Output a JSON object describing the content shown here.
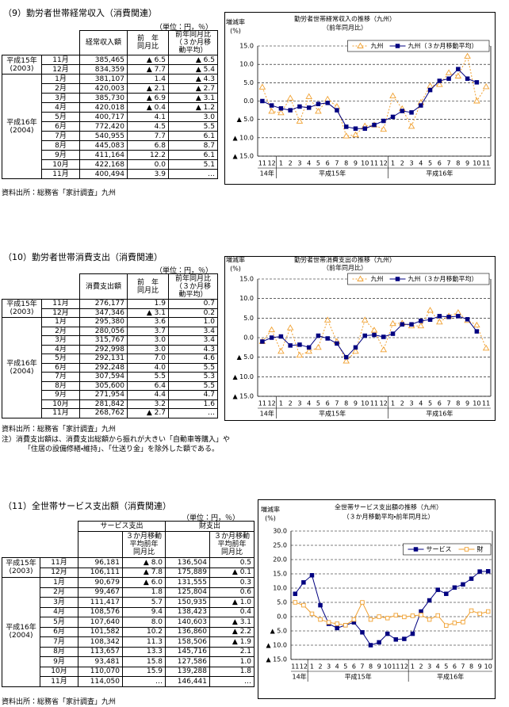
{
  "sections": [
    {
      "title": "（9）勤労者世帯経常収入（消費関連）",
      "unit": "（単位：円，％）",
      "table": {
        "header": [
          "経常収入額",
          [
            "前　年",
            "同月比"
          ],
          [
            "前年同月比",
            "（３か月移",
            "動平均）"
          ]
        ],
        "groups": [
          {
            "year": [
              "平成15年",
              "(2003)"
            ],
            "rows": [
              [
                "11月",
                "385,465",
                "▲ 6.5",
                "▲ 6.5"
              ],
              [
                "12月",
                "834,359",
                "▲ 7.7",
                "▲ 5.4"
              ]
            ]
          },
          {
            "year": [
              "平成16年",
              "(2004)"
            ],
            "rows": [
              [
                "1月",
                "381,107",
                "1.4",
                "▲ 4.3"
              ],
              [
                "2月",
                "420,003",
                "▲ 2.1",
                "▲ 2.7"
              ],
              [
                "3月",
                "385,730",
                "▲ 6.9",
                "▲ 3.1"
              ],
              [
                "4月",
                "420,018",
                "▲ 0.4",
                "▲ 1.2"
              ],
              [
                "5月",
                "400,717",
                "4.1",
                "3.0"
              ],
              [
                "6月",
                "772,420",
                "4.5",
                "5.5"
              ],
              [
                "7月",
                "540,955",
                "7.7",
                "6.1"
              ],
              [
                "8月",
                "445,083",
                "6.8",
                "8.7"
              ],
              [
                "9月",
                "411,164",
                "12.2",
                "6.1"
              ],
              [
                "10月",
                "422,168",
                "0.0",
                "5.1"
              ],
              [
                "11月",
                "400,494",
                "3.9",
                "…"
              ]
            ]
          }
        ]
      },
      "source": "資料出所：総務省「家計調査」九州"
    },
    {
      "title": "（10）勤労者世帯消費支出（消費関連）",
      "unit": "（単位：円，％）",
      "table": {
        "header": [
          "消費支出額",
          [
            "前　年",
            "同月比"
          ],
          [
            "前年同月比",
            "（３か月移",
            "動平均）"
          ]
        ],
        "groups": [
          {
            "year": [
              "平成15年",
              "(2003)"
            ],
            "rows": [
              [
                "11月",
                "276,177",
                "1.9",
                "0.7"
              ],
              [
                "12月",
                "347,346",
                "▲ 3.1",
                "0.2"
              ]
            ]
          },
          {
            "year": [
              "平成16年",
              "(2004)"
            ],
            "rows": [
              [
                "1月",
                "295,380",
                "3.6",
                "1.0"
              ],
              [
                "2月",
                "280,056",
                "3.7",
                "3.4"
              ],
              [
                "3月",
                "315,767",
                "3.0",
                "3.4"
              ],
              [
                "4月",
                "292,998",
                "3.0",
                "4.3"
              ],
              [
                "5月",
                "292,131",
                "7.0",
                "4.6"
              ],
              [
                "6月",
                "292,248",
                "4.0",
                "5.5"
              ],
              [
                "7月",
                "307,594",
                "5.5",
                "5.3"
              ],
              [
                "8月",
                "305,600",
                "6.4",
                "5.5"
              ],
              [
                "9月",
                "271,954",
                "4.4",
                "4.7"
              ],
              [
                "10月",
                "281,842",
                "3.2",
                "1.6"
              ],
              [
                "11月",
                "268,762",
                "▲ 2.7",
                "…"
              ]
            ]
          }
        ]
      },
      "source": "資料出所：総務省「家計調査」九州",
      "note": [
        "注）消費支出額は、消費支出総額から振れが大きい「自動車等購入」や",
        "「住居の設備修繕・維持」、「仕送り金」を除外した額である。"
      ]
    },
    {
      "title": "（11）全世帯サービス支出額（消費関連）",
      "unit": "（単位：円，％）",
      "table": {
        "header_top": [
          "サービス支出",
          "財支出"
        ],
        "header_sub": [
          "３か月移動",
          "平均前年",
          "同月比"
        ],
        "groups": [
          {
            "year": [
              "平成15年",
              "(2003)"
            ],
            "rows": [
              [
                "11月",
                "96,181",
                "▲ 8.0",
                "136,504",
                "0.5"
              ],
              [
                "12月",
                "106,111",
                "▲ 7.8",
                "175,889",
                "▲ 0.1"
              ]
            ]
          },
          {
            "year": [
              "平成16年",
              "(2004)"
            ],
            "rows": [
              [
                "1月",
                "90,679",
                "▲ 6.0",
                "131,555",
                "0.3"
              ],
              [
                "2月",
                "99,467",
                "1.8",
                "125,804",
                "0.6"
              ],
              [
                "3月",
                "111,417",
                "5.7",
                "150,935",
                "▲ 1.0"
              ],
              [
                "4月",
                "108,576",
                "9.4",
                "138,423",
                "0.4"
              ],
              [
                "5月",
                "107,640",
                "8.0",
                "140,603",
                "▲ 3.1"
              ],
              [
                "6月",
                "101,582",
                "10.2",
                "136,860",
                "▲ 2.2"
              ],
              [
                "7月",
                "108,342",
                "11.3",
                "158,506",
                "▲ 1.9"
              ],
              [
                "8月",
                "113,657",
                "13.3",
                "145,716",
                "2.1"
              ],
              [
                "9月",
                "93,481",
                "15.8",
                "127,586",
                "1.0"
              ],
              [
                "10月",
                "110,070",
                "15.9",
                "139,288",
                "1.8"
              ],
              [
                "11月",
                "114,050",
                "…",
                "146,441",
                "…"
              ]
            ]
          }
        ]
      },
      "source": "資料出所：総務省「家計調査」九州"
    }
  ],
  "chart_data": [
    {
      "type": "line",
      "title": "勤労者世帯経常収入の推移（九州）",
      "subtitle": "（前年同月比）",
      "y_label": [
        "増減率",
        "(%)"
      ],
      "categories": [
        "11",
        "12",
        "1",
        "2",
        "3",
        "4",
        "5",
        "6",
        "7",
        "8",
        "9",
        "10",
        "11",
        "12",
        "1",
        "2",
        "3",
        "4",
        "5",
        "6",
        "7",
        "8",
        "9",
        "10",
        "11"
      ],
      "x_groups": [
        {
          "label": "14年",
          "count": 2
        },
        {
          "label": "平成15年",
          "count": 12
        },
        {
          "label": "平成16年",
          "count": 11
        }
      ],
      "ylim": [
        -15,
        15
      ],
      "yticks": [
        {
          "value": 15,
          "label": "15.0"
        },
        {
          "value": 10,
          "label": "10.0"
        },
        {
          "value": 5,
          "label": "5.0"
        },
        {
          "value": 0,
          "label": "0.0"
        },
        {
          "value": -5,
          "label": "▲ 5.0"
        },
        {
          "value": -10,
          "label": "▲ 10.0"
        },
        {
          "value": -15,
          "label": "▲ 15.0"
        }
      ],
      "grid": true,
      "legend": "top-right",
      "series": [
        {
          "name": "九州",
          "color": "#f0a030",
          "marker": "triangle-open",
          "dash": true,
          "values": [
            3.8,
            -2.8,
            -3.2,
            0.8,
            -5.5,
            1.2,
            -2.8,
            0.5,
            -1.5,
            -9.5,
            -9.2,
            -6.8,
            -6.5,
            -7.7,
            1.4,
            -2.1,
            -6.9,
            -0.4,
            4.1,
            4.5,
            7.7,
            6.8,
            12.2,
            0.0,
            3.9
          ]
        },
        {
          "name": "九州（３か月移動平均）",
          "color": "#000080",
          "marker": "square",
          "dash": false,
          "values": [
            0,
            -1.2,
            -2,
            -2.5,
            -1.5,
            -1.8,
            -0.8,
            -0.5,
            -2.5,
            -7,
            -7.5,
            -7.5,
            -6.5,
            -5.4,
            -4.3,
            -2.7,
            -3.1,
            -1.2,
            3.0,
            5.5,
            6.1,
            8.7,
            6.1,
            5.1,
            null
          ]
        }
      ]
    },
    {
      "type": "line",
      "title": "勤労者世帯消費支出の推移（九州）",
      "subtitle": "（前年同月比）",
      "y_label": [
        "増減率",
        "(%)"
      ],
      "categories": [
        "11",
        "12",
        "1",
        "2",
        "3",
        "4",
        "5",
        "6",
        "7",
        "8",
        "9",
        "10",
        "11",
        "12",
        "1",
        "2",
        "3",
        "4",
        "5",
        "6",
        "7",
        "8",
        "9",
        "10",
        "11"
      ],
      "x_groups": [
        {
          "label": "14年",
          "count": 2
        },
        {
          "label": "平成15年",
          "count": 12
        },
        {
          "label": "平成16年",
          "count": 11
        }
      ],
      "ylim": [
        -15,
        15
      ],
      "yticks": [
        {
          "value": 15,
          "label": "15.0"
        },
        {
          "value": 10,
          "label": "10.0"
        },
        {
          "value": 5,
          "label": "5.0"
        },
        {
          "value": 0,
          "label": "0.0"
        },
        {
          "value": -5,
          "label": "▲ 5.0"
        },
        {
          "value": -10,
          "label": "▲ 10.0"
        },
        {
          "value": -15,
          "label": "▲ 15.0"
        }
      ],
      "grid": true,
      "legend": "top-right",
      "series": [
        {
          "name": "九州",
          "color": "#f0a030",
          "marker": "triangle-open",
          "dash": true,
          "values": [
            -1,
            2,
            -3.5,
            2.5,
            -4.5,
            -3.5,
            -2.5,
            4.5,
            -1,
            -6,
            -3.5,
            4.5,
            1.9,
            -3.1,
            3.6,
            3.7,
            3.0,
            3.0,
            7.0,
            4.0,
            5.5,
            6.4,
            4.4,
            3.2,
            -2.7
          ]
        },
        {
          "name": "九州（３か月移動平均）",
          "color": "#000080",
          "marker": "square",
          "dash": false,
          "values": [
            -1,
            0,
            0.3,
            -2,
            -1.8,
            -2.5,
            0.5,
            -0.2,
            -1.5,
            -5,
            -2.5,
            0.5,
            0.7,
            0.2,
            1.0,
            3.4,
            3.4,
            4.3,
            4.6,
            5.5,
            5.3,
            5.5,
            4.7,
            1.6,
            null
          ]
        }
      ]
    },
    {
      "type": "line",
      "title": "全世帯サービス支出額の推移（九州）",
      "subtitle": "（３か月移動平均・前年同月比）",
      "y_label": [
        "増減率",
        "(%)"
      ],
      "categories": [
        "11",
        "12",
        "1",
        "2",
        "3",
        "4",
        "5",
        "6",
        "7",
        "8",
        "9",
        "10",
        "11",
        "12",
        "1",
        "2",
        "3",
        "4",
        "5",
        "6",
        "7",
        "8",
        "9",
        "10"
      ],
      "x_groups": [
        {
          "label": "14年",
          "count": 2
        },
        {
          "label": "平成15年",
          "count": 12
        },
        {
          "label": "平成16年",
          "count": 10
        }
      ],
      "ylim": [
        -15,
        30
      ],
      "yticks": [
        {
          "value": 30,
          "label": "30.0"
        },
        {
          "value": 25,
          "label": "25.0"
        },
        {
          "value": 20,
          "label": "20.0"
        },
        {
          "value": 15,
          "label": "15.0"
        },
        {
          "value": 10,
          "label": "10.0"
        },
        {
          "value": 5,
          "label": "5.0"
        },
        {
          "value": 0,
          "label": "0.0"
        },
        {
          "value": -5,
          "label": "▲ 5.0"
        },
        {
          "value": -10,
          "label": "▲ 10.0"
        },
        {
          "value": -15,
          "label": "▲ 15.0"
        }
      ],
      "grid": true,
      "legend": "top-right",
      "series": [
        {
          "name": "サービス",
          "color": "#000080",
          "marker": "square",
          "dash": false,
          "values": [
            8,
            12,
            14.5,
            4,
            -2.5,
            -4,
            -3,
            -2,
            -5.5,
            -10,
            -9,
            -6,
            -8.0,
            -7.8,
            -6.0,
            1.8,
            5.7,
            9.4,
            8.0,
            10.2,
            11.3,
            13.3,
            15.8,
            15.9
          ]
        },
        {
          "name": "財",
          "color": "#f0a030",
          "marker": "square-open",
          "dash": false,
          "values": [
            5,
            4,
            1,
            -1,
            -2,
            -2.5,
            -3,
            -1,
            5,
            -1,
            0,
            -0.5,
            0.5,
            -0.1,
            0.3,
            0.6,
            -1.0,
            0.4,
            -3.1,
            -2.2,
            -1.9,
            2.1,
            1.0,
            1.8
          ]
        }
      ]
    }
  ]
}
